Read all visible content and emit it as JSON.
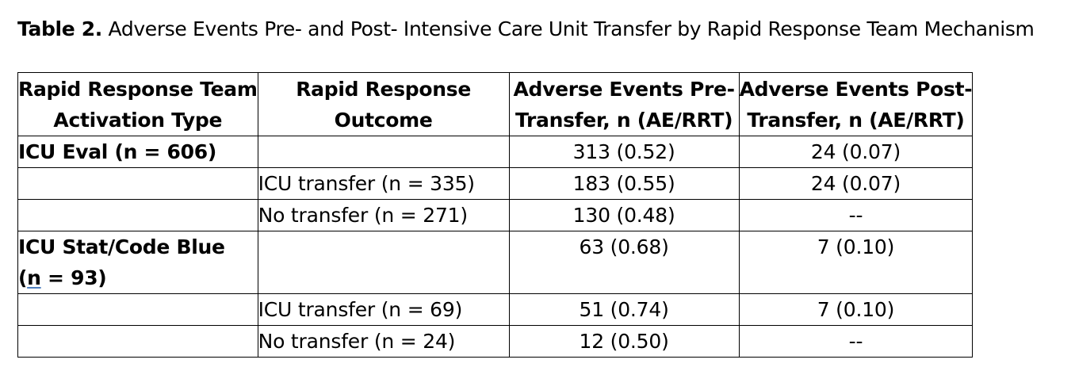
{
  "caption": {
    "label": "Table 2.",
    "text": " Adverse Events Pre- and Post- Intensive Care Unit Transfer by Rapid Response Team Mechanism"
  },
  "table": {
    "headers": {
      "col1": [
        "Rapid Response Team",
        "Activation Type"
      ],
      "col2": [
        "Rapid Response",
        "Outcome"
      ],
      "col3": [
        "Adverse Events Pre-",
        "Transfer, n (AE/RRT)"
      ],
      "col4": [
        "Adverse Events Post-",
        "Transfer, n (AE/RRT)"
      ]
    },
    "rows": [
      {
        "type": "ICU Eval (n = 606)",
        "outcome": "",
        "pre": "313 (0.52)",
        "post": "24 (0.07)"
      },
      {
        "type": "",
        "outcome": "ICU transfer (n = 335)",
        "pre": "183 (0.55)",
        "post": "24 (0.07)"
      },
      {
        "type": "",
        "outcome": "No transfer (n = 271)",
        "pre": "130 (0.48)",
        "post": "--"
      },
      {
        "type_line1": "ICU Stat/Code Blue",
        "type_line2_prefix": "(",
        "type_line2_n": "n",
        "type_line2_suffix": " = 93)",
        "outcome": "",
        "pre": "63 (0.68)",
        "post": "7 (0.10)"
      },
      {
        "type": "",
        "outcome": "ICU transfer (n = 69)",
        "pre": "51 (0.74)",
        "post": "7 (0.10)"
      },
      {
        "type": "",
        "outcome": "No transfer (n = 24)",
        "pre": "12 (0.50)",
        "post": "--"
      }
    ]
  }
}
